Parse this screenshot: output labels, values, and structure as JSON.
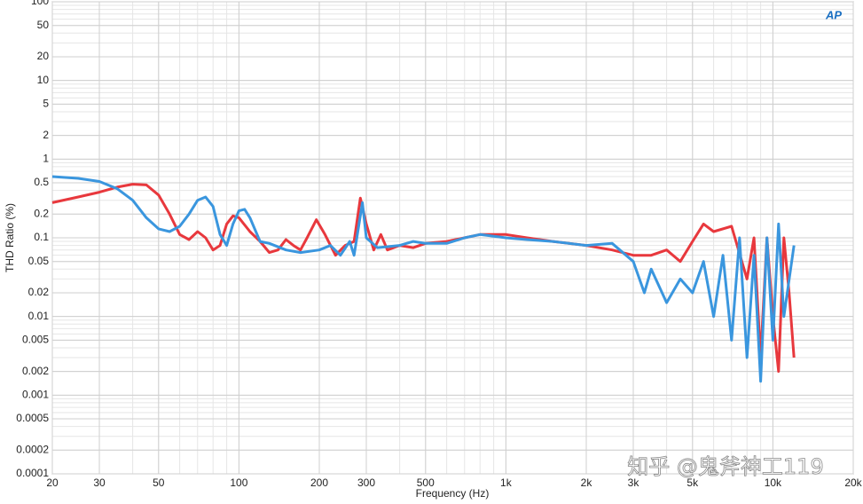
{
  "chart_data": {
    "type": "line",
    "x_label": "Frequency (Hz)",
    "y_label": "THD Ratio (%)",
    "logo": "AP",
    "watermark": "知乎 @鬼斧神工119",
    "xscale": "log",
    "yscale": "log",
    "grid": true,
    "xlim": [
      20,
      20000
    ],
    "ylim": [
      0.0001,
      100
    ],
    "xticks": [
      20,
      30,
      50,
      100,
      200,
      300,
      500,
      {
        "value": 1000,
        "label": "1k"
      },
      {
        "value": 2000,
        "label": "2k"
      },
      {
        "value": 3000,
        "label": "3k"
      },
      {
        "value": 5000,
        "label": "5k"
      },
      {
        "value": 10000,
        "label": "10k"
      },
      {
        "value": 20000,
        "label": "20k"
      }
    ],
    "yticks": [
      100,
      50,
      20,
      10,
      5,
      2,
      1,
      0.5,
      0.2,
      0.1,
      0.05,
      0.02,
      0.01,
      0.005,
      0.002,
      0.001,
      0.0005,
      0.0002,
      0.0001
    ],
    "series": [
      {
        "color": "#e8383d",
        "x": [
          20,
          25,
          30,
          35,
          40,
          45,
          50,
          55,
          60,
          65,
          70,
          75,
          80,
          85,
          90,
          95,
          100,
          110,
          120,
          130,
          140,
          150,
          160,
          170,
          180,
          195,
          210,
          230,
          250,
          270,
          285,
          300,
          320,
          340,
          360,
          400,
          450,
          500,
          600,
          700,
          800,
          1000,
          1200,
          1500,
          2000,
          2500,
          3000,
          3500,
          4000,
          4500,
          5000,
          5500,
          6000,
          7000,
          8000,
          8500,
          9000,
          9500,
          10000,
          10500,
          11000,
          11500,
          12000
        ],
        "values": [
          0.28,
          0.33,
          0.38,
          0.44,
          0.48,
          0.47,
          0.35,
          0.2,
          0.11,
          0.095,
          0.12,
          0.1,
          0.07,
          0.08,
          0.15,
          0.19,
          0.18,
          0.12,
          0.09,
          0.065,
          0.07,
          0.095,
          0.08,
          0.07,
          0.1,
          0.17,
          0.11,
          0.06,
          0.08,
          0.09,
          0.32,
          0.15,
          0.07,
          0.11,
          0.07,
          0.08,
          0.075,
          0.085,
          0.09,
          0.1,
          0.11,
          0.11,
          0.1,
          0.09,
          0.08,
          0.07,
          0.06,
          0.06,
          0.07,
          0.05,
          0.09,
          0.15,
          0.12,
          0.14,
          0.03,
          0.1,
          0.003,
          0.1,
          0.01,
          0.002,
          0.1,
          0.02,
          0.003
        ]
      },
      {
        "color": "#3a96de",
        "x": [
          20,
          25,
          30,
          35,
          40,
          45,
          50,
          55,
          60,
          65,
          70,
          75,
          80,
          85,
          90,
          95,
          100,
          105,
          110,
          120,
          130,
          150,
          170,
          200,
          220,
          240,
          260,
          270,
          290,
          300,
          330,
          400,
          450,
          500,
          600,
          700,
          800,
          1000,
          1200,
          1500,
          2000,
          2500,
          3000,
          3300,
          3500,
          4000,
          4500,
          5000,
          5500,
          6000,
          6500,
          7000,
          7500,
          8000,
          8500,
          9000,
          9500,
          10000,
          10500,
          11000,
          12000
        ],
        "values": [
          0.6,
          0.57,
          0.52,
          0.42,
          0.3,
          0.18,
          0.13,
          0.12,
          0.14,
          0.2,
          0.3,
          0.33,
          0.25,
          0.11,
          0.08,
          0.15,
          0.22,
          0.23,
          0.18,
          0.09,
          0.085,
          0.07,
          0.065,
          0.07,
          0.08,
          0.06,
          0.09,
          0.06,
          0.28,
          0.1,
          0.075,
          0.08,
          0.09,
          0.085,
          0.085,
          0.1,
          0.11,
          0.1,
          0.095,
          0.09,
          0.08,
          0.085,
          0.05,
          0.02,
          0.04,
          0.015,
          0.03,
          0.02,
          0.05,
          0.01,
          0.06,
          0.005,
          0.1,
          0.003,
          0.06,
          0.0015,
          0.1,
          0.005,
          0.15,
          0.01,
          0.08
        ]
      }
    ]
  }
}
